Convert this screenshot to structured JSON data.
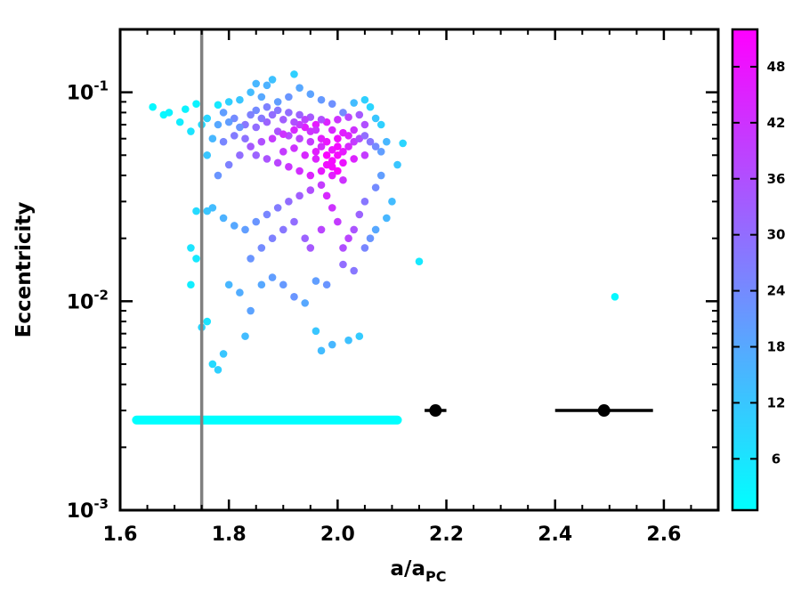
{
  "chart_data": {
    "type": "scatter",
    "xlabel": "a/a",
    "xlabel_subscript": "PC",
    "ylabel": "Eccentricity",
    "xlim": [
      1.6,
      2.7
    ],
    "ylim": [
      0.001,
      0.2
    ],
    "yscale": "log",
    "grid": false,
    "x_ticks": [
      "1.6",
      "1.8",
      "2.0",
      "2.2",
      "2.4",
      "2.6"
    ],
    "x_tick_values": [
      1.6,
      1.8,
      2.0,
      2.2,
      2.4,
      2.6
    ],
    "y_ticks": [
      {
        "value": 0.001,
        "base": "10",
        "exp": "-3"
      },
      {
        "value": 0.01,
        "base": "10",
        "exp": "-2"
      },
      {
        "value": 0.1,
        "base": "10",
        "exp": "-1"
      }
    ],
    "vertical_line": {
      "x": 1.75,
      "color": "#808080"
    },
    "horizontal_band": {
      "x_start": 1.63,
      "x_end": 2.11,
      "y": 0.0027,
      "color": "#00ffff"
    },
    "error_points": [
      {
        "x": 2.18,
        "y": 0.003,
        "xerr": 0.02
      },
      {
        "x": 2.49,
        "y": 0.003,
        "xerr": 0.09
      }
    ],
    "colorbar": {
      "ticks": [
        "6",
        "12",
        "18",
        "24",
        "30",
        "36",
        "42",
        "48"
      ],
      "tick_values": [
        6,
        12,
        18,
        24,
        30,
        36,
        42,
        48
      ],
      "range": [
        0.5,
        52
      ],
      "colormap": [
        "#00ffff",
        "#ff00ff"
      ]
    },
    "points": [
      [
        1.72,
        0.083,
        3
      ],
      [
        1.74,
        0.088,
        3
      ],
      [
        1.78,
        0.087,
        5
      ],
      [
        1.66,
        0.085,
        2
      ],
      [
        1.68,
        0.078,
        2
      ],
      [
        1.71,
        0.072,
        4
      ],
      [
        1.69,
        0.08,
        3
      ],
      [
        1.73,
        0.065,
        6
      ],
      [
        1.75,
        0.07,
        8
      ],
      [
        1.76,
        0.075,
        9
      ],
      [
        1.8,
        0.09,
        10
      ],
      [
        1.82,
        0.092,
        12
      ],
      [
        1.84,
        0.1,
        14
      ],
      [
        1.85,
        0.11,
        15
      ],
      [
        1.87,
        0.108,
        16
      ],
      [
        1.88,
        0.115,
        13
      ],
      [
        1.86,
        0.095,
        18
      ],
      [
        1.89,
        0.09,
        20
      ],
      [
        1.91,
        0.095,
        22
      ],
      [
        1.93,
        0.105,
        18
      ],
      [
        1.95,
        0.098,
        19
      ],
      [
        1.92,
        0.122,
        10
      ],
      [
        1.97,
        0.092,
        21
      ],
      [
        1.99,
        0.088,
        23
      ],
      [
        2.01,
        0.08,
        24
      ],
      [
        2.03,
        0.089,
        14
      ],
      [
        2.05,
        0.092,
        10
      ],
      [
        2.06,
        0.085,
        9
      ],
      [
        2.07,
        0.075,
        12
      ],
      [
        2.08,
        0.07,
        10
      ],
      [
        1.79,
        0.08,
        20
      ],
      [
        1.81,
        0.075,
        24
      ],
      [
        1.83,
        0.07,
        28
      ],
      [
        1.85,
        0.068,
        30
      ],
      [
        1.87,
        0.072,
        32
      ],
      [
        1.89,
        0.065,
        35
      ],
      [
        1.91,
        0.062,
        37
      ],
      [
        1.93,
        0.06,
        38
      ],
      [
        1.95,
        0.058,
        40
      ],
      [
        1.97,
        0.055,
        43
      ],
      [
        1.99,
        0.053,
        48
      ],
      [
        2.0,
        0.05,
        50
      ],
      [
        2.01,
        0.052,
        47
      ],
      [
        2.02,
        0.055,
        44
      ],
      [
        2.03,
        0.058,
        40
      ],
      [
        2.04,
        0.06,
        36
      ],
      [
        2.05,
        0.062,
        30
      ],
      [
        2.06,
        0.058,
        28
      ],
      [
        2.07,
        0.055,
        24
      ],
      [
        2.08,
        0.052,
        20
      ],
      [
        1.96,
        0.048,
        45
      ],
      [
        1.98,
        0.045,
        49
      ],
      [
        2.0,
        0.042,
        51
      ],
      [
        1.99,
        0.04,
        46
      ],
      [
        2.01,
        0.038,
        42
      ],
      [
        1.97,
        0.036,
        40
      ],
      [
        1.95,
        0.034,
        36
      ],
      [
        1.93,
        0.032,
        33
      ],
      [
        1.91,
        0.03,
        30
      ],
      [
        1.89,
        0.028,
        27
      ],
      [
        1.87,
        0.026,
        25
      ],
      [
        1.85,
        0.024,
        22
      ],
      [
        1.83,
        0.022,
        20
      ],
      [
        1.81,
        0.023,
        18
      ],
      [
        1.79,
        0.025,
        16
      ],
      [
        1.77,
        0.028,
        14
      ],
      [
        1.76,
        0.027,
        12
      ],
      [
        1.74,
        0.027,
        8
      ],
      [
        1.73,
        0.018,
        6
      ],
      [
        1.74,
        0.016,
        5
      ],
      [
        1.73,
        0.012,
        4
      ],
      [
        1.76,
        0.008,
        6
      ],
      [
        1.77,
        0.005,
        8
      ],
      [
        1.78,
        0.0047,
        10
      ],
      [
        1.79,
        0.0056,
        12
      ],
      [
        1.75,
        0.0075,
        9
      ],
      [
        1.8,
        0.012,
        15
      ],
      [
        1.82,
        0.011,
        17
      ],
      [
        1.84,
        0.009,
        19
      ],
      [
        1.83,
        0.0068,
        14
      ],
      [
        1.86,
        0.012,
        18
      ],
      [
        1.88,
        0.013,
        20
      ],
      [
        1.9,
        0.012,
        21
      ],
      [
        1.92,
        0.0105,
        22
      ],
      [
        1.96,
        0.0125,
        20
      ],
      [
        1.98,
        0.012,
        22
      ],
      [
        1.94,
        0.0098,
        18
      ],
      [
        1.97,
        0.0058,
        14
      ],
      [
        1.99,
        0.0062,
        15
      ],
      [
        2.02,
        0.0065,
        13
      ],
      [
        1.96,
        0.0072,
        12
      ],
      [
        2.04,
        0.0068,
        11
      ],
      [
        2.01,
        0.015,
        30
      ],
      [
        2.03,
        0.014,
        28
      ],
      [
        2.05,
        0.018,
        25
      ],
      [
        2.06,
        0.02,
        22
      ],
      [
        2.07,
        0.022,
        18
      ],
      [
        2.09,
        0.025,
        15
      ],
      [
        2.1,
        0.03,
        14
      ],
      [
        2.11,
        0.045,
        12
      ],
      [
        2.12,
        0.057,
        9
      ],
      [
        2.09,
        0.058,
        15
      ],
      [
        2.08,
        0.04,
        20
      ],
      [
        2.07,
        0.035,
        24
      ],
      [
        2.05,
        0.03,
        28
      ],
      [
        2.04,
        0.026,
        32
      ],
      [
        2.03,
        0.022,
        35
      ],
      [
        2.02,
        0.02,
        38
      ],
      [
        2.01,
        0.018,
        36
      ],
      [
        2.0,
        0.024,
        40
      ],
      [
        1.99,
        0.028,
        42
      ],
      [
        1.98,
        0.032,
        44
      ],
      [
        1.97,
        0.022,
        38
      ],
      [
        1.95,
        0.018,
        34
      ],
      [
        1.94,
        0.02,
        32
      ],
      [
        1.92,
        0.024,
        30
      ],
      [
        1.9,
        0.022,
        28
      ],
      [
        1.88,
        0.02,
        26
      ],
      [
        1.86,
        0.018,
        24
      ],
      [
        1.84,
        0.016,
        22
      ],
      [
        2.15,
        0.0155,
        5
      ],
      [
        2.51,
        0.0105,
        2
      ],
      [
        1.78,
        0.04,
        22
      ],
      [
        1.8,
        0.045,
        26
      ],
      [
        1.82,
        0.05,
        30
      ],
      [
        1.84,
        0.055,
        34
      ],
      [
        1.86,
        0.058,
        36
      ],
      [
        1.88,
        0.06,
        40
      ],
      [
        1.9,
        0.063,
        42
      ],
      [
        1.92,
        0.066,
        44
      ],
      [
        1.94,
        0.068,
        46
      ],
      [
        1.96,
        0.07,
        47
      ],
      [
        1.98,
        0.072,
        45
      ],
      [
        2.0,
        0.074,
        42
      ],
      [
        2.02,
        0.076,
        38
      ],
      [
        2.04,
        0.078,
        34
      ],
      [
        1.79,
        0.058,
        25
      ],
      [
        1.81,
        0.062,
        27
      ],
      [
        1.83,
        0.06,
        29
      ],
      [
        1.85,
        0.05,
        32
      ],
      [
        1.87,
        0.048,
        35
      ],
      [
        1.89,
        0.046,
        38
      ],
      [
        1.91,
        0.044,
        41
      ],
      [
        1.93,
        0.042,
        43
      ],
      [
        1.95,
        0.04,
        45
      ],
      [
        1.97,
        0.042,
        47
      ],
      [
        1.99,
        0.044,
        50
      ],
      [
        2.01,
        0.046,
        48
      ],
      [
        2.03,
        0.048,
        45
      ],
      [
        2.05,
        0.05,
        40
      ],
      [
        1.85,
        0.082,
        24
      ],
      [
        1.87,
        0.085,
        26
      ],
      [
        1.89,
        0.082,
        28
      ],
      [
        1.91,
        0.08,
        30
      ],
      [
        1.93,
        0.078,
        32
      ],
      [
        1.95,
        0.076,
        34
      ],
      [
        1.97,
        0.074,
        36
      ],
      [
        1.99,
        0.066,
        44
      ],
      [
        2.01,
        0.064,
        46
      ],
      [
        2.03,
        0.066,
        42
      ],
      [
        2.05,
        0.07,
        36
      ],
      [
        1.9,
        0.052,
        40
      ],
      [
        1.92,
        0.054,
        42
      ],
      [
        1.94,
        0.05,
        44
      ],
      [
        1.96,
        0.052,
        46
      ],
      [
        1.98,
        0.058,
        48
      ],
      [
        2.0,
        0.06,
        49
      ],
      [
        2.02,
        0.062,
        45
      ],
      [
        1.98,
        0.05,
        51
      ],
      [
        1.99,
        0.047,
        50
      ],
      [
        2.0,
        0.055,
        50
      ],
      [
        1.97,
        0.06,
        46
      ],
      [
        1.93,
        0.07,
        40
      ],
      [
        1.95,
        0.065,
        42
      ],
      [
        1.77,
        0.06,
        15
      ],
      [
        1.76,
        0.05,
        12
      ],
      [
        1.78,
        0.07,
        18
      ],
      [
        1.8,
        0.072,
        20
      ],
      [
        1.82,
        0.068,
        22
      ],
      [
        1.84,
        0.078,
        26
      ],
      [
        1.86,
        0.075,
        28
      ],
      [
        1.88,
        0.078,
        30
      ],
      [
        1.9,
        0.074,
        33
      ],
      [
        1.92,
        0.072,
        36
      ],
      [
        1.94,
        0.074,
        38
      ],
      [
        1.96,
        0.066,
        41
      ]
    ]
  }
}
